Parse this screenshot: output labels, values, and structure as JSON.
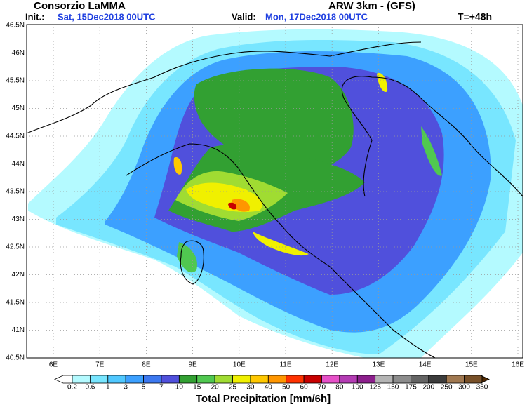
{
  "header": {
    "title": "Consorzio LaMMA",
    "model": "ARW 3km - (GFS)",
    "init_label": "Init.:",
    "init_time": "Sat, 15Dec2018 00UTC",
    "valid_label": "Valid:",
    "valid_time": "Mon, 17Dec2018 00UTC",
    "lead_time": "T=+48h"
  },
  "map": {
    "lon_labels": [
      "6E",
      "7E",
      "8E",
      "9E",
      "10E",
      "11E",
      "12E",
      "13E",
      "14E",
      "15E",
      "16E"
    ],
    "lat_labels": [
      "46.5N",
      "46N",
      "45.5N",
      "45N",
      "44.5N",
      "44N",
      "43.5N",
      "43N",
      "42.5N",
      "42N",
      "41.5N",
      "41N",
      "40.5N"
    ]
  },
  "colorbar": {
    "title": "Total Precipitation [mm/6h]",
    "labels": [
      "0.2",
      "0.6",
      "1",
      "3",
      "5",
      "7",
      "10",
      "15",
      "20",
      "25",
      "30",
      "40",
      "50",
      "60",
      "70",
      "80",
      "100",
      "125",
      "150",
      "175",
      "200",
      "250",
      "300",
      "350"
    ],
    "colors": [
      "#ffffff",
      "#b4faff",
      "#78e6ff",
      "#50c8ff",
      "#3ca0ff",
      "#3c78f0",
      "#5050dc",
      "#32a032",
      "#50c850",
      "#a0dc32",
      "#f0f000",
      "#ffc800",
      "#ff9600",
      "#ff3200",
      "#c80000",
      "#e650c8",
      "#b43cb4",
      "#8c1e8c",
      "#b4b4b4",
      "#8c8c8c",
      "#646464",
      "#3c3c3c",
      "#a07850",
      "#785028",
      "#502800"
    ]
  }
}
